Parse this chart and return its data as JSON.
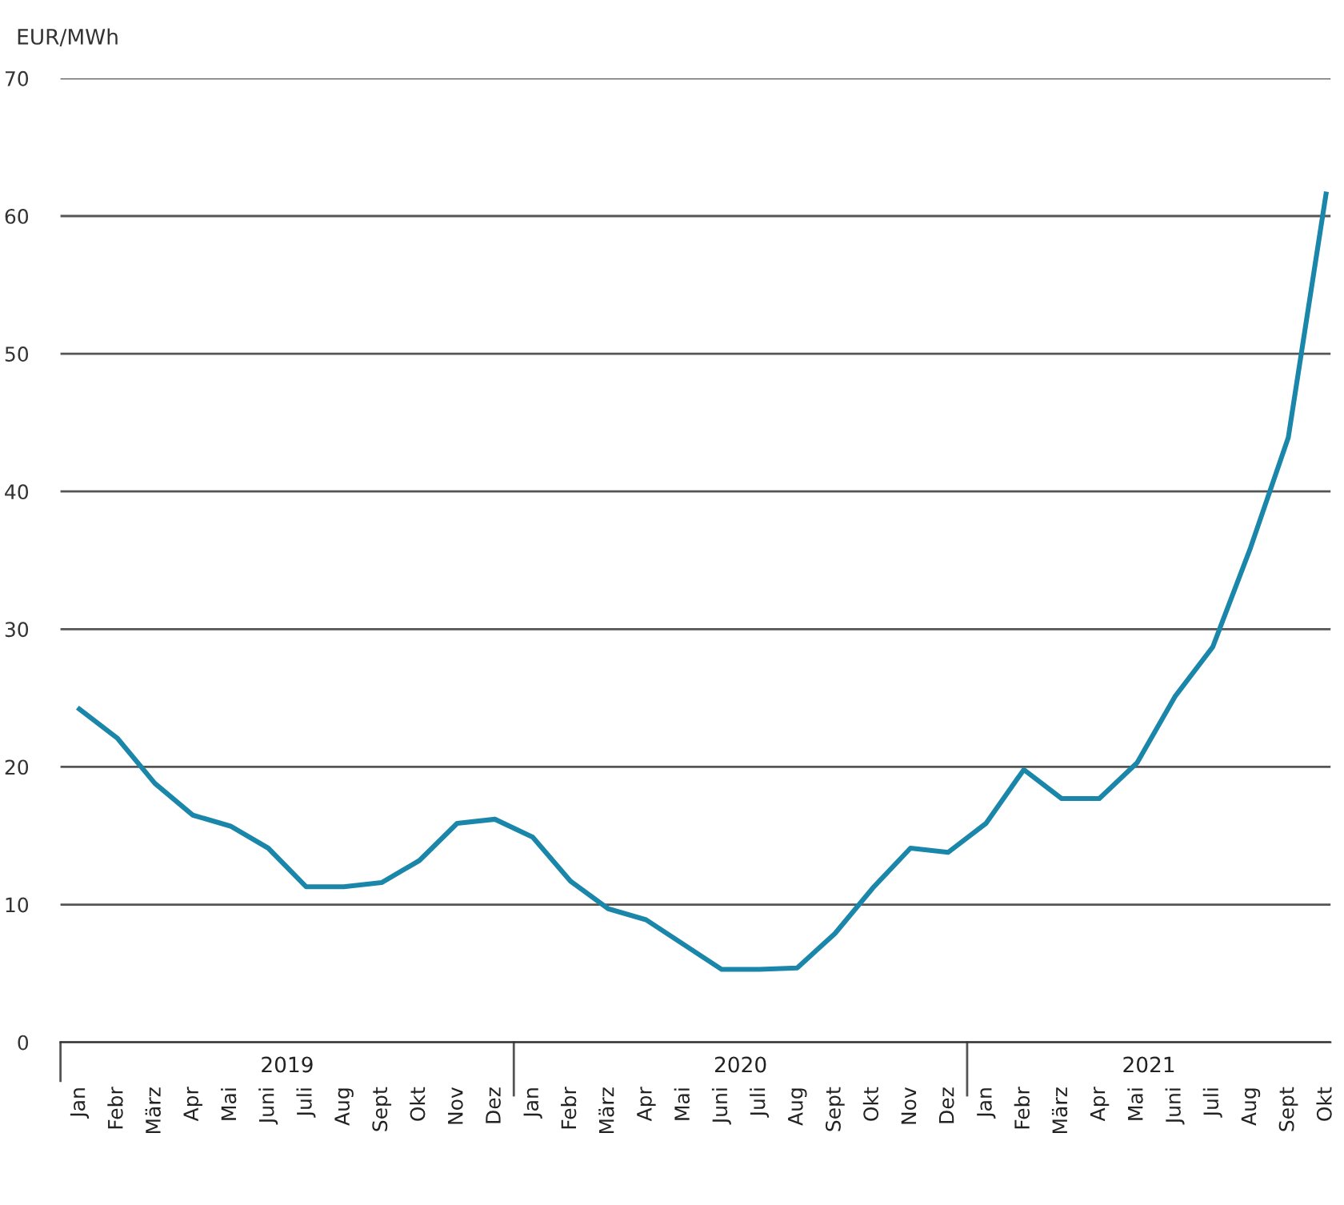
{
  "chart_data": {
    "type": "line",
    "ylabel": "EUR/MWh",
    "categories": [
      "Jan",
      "Febr",
      "März",
      "Apr",
      "Mai",
      "Juni",
      "Juli",
      "Aug",
      "Sept",
      "Okt",
      "Nov",
      "Dez",
      "Jan",
      "Febr",
      "März",
      "Apr",
      "Mai",
      "Juni",
      "Juli",
      "Aug",
      "Sept",
      "Okt",
      "Nov",
      "Dez",
      "Jan",
      "Febr",
      "März",
      "Apr",
      "Mai",
      "Juni",
      "Juli",
      "Aug",
      "Sept",
      "Okt"
    ],
    "series": [
      {
        "color": "#1a87aa",
        "values": [
          24.2,
          22.1,
          18.8,
          16.5,
          15.7,
          14.1,
          11.3,
          11.3,
          11.6,
          13.2,
          15.9,
          16.2,
          14.9,
          11.7,
          9.7,
          8.9,
          7.1,
          5.3,
          5.3,
          5.4,
          7.9,
          11.2,
          14.1,
          13.8,
          15.9,
          19.8,
          17.7,
          17.7,
          20.3,
          25.1,
          28.7,
          35.9,
          43.9,
          61.6
        ]
      }
    ],
    "annotations": [
      "2019",
      "2020",
      "2021"
    ],
    "ylim": [
      0,
      70
    ],
    "yticks": [
      0,
      10,
      20,
      30,
      40,
      50,
      60,
      70
    ],
    "grid": "y",
    "legend": false,
    "marker": "none",
    "line_style": "solid"
  }
}
